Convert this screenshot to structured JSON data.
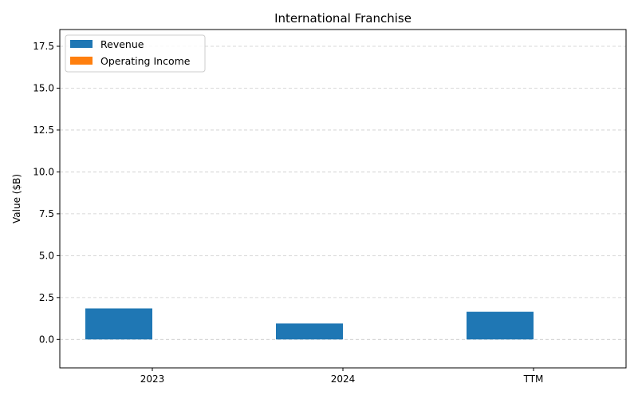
{
  "chart_data": {
    "type": "bar",
    "title": "International Franchise",
    "xlabel": "",
    "ylabel": "Value ($B)",
    "categories": [
      "2023",
      "2024",
      "TTM"
    ],
    "series": [
      {
        "name": "Revenue",
        "color": "#1f77b4",
        "values": [
          1.85,
          0.95,
          1.65
        ]
      },
      {
        "name": "Operating Income",
        "color": "#ff7f0e",
        "values": [
          0,
          0,
          0
        ]
      }
    ],
    "ylim": [
      -1.7,
      18.5
    ],
    "yticks": [
      "0.0",
      "2.5",
      "5.0",
      "7.5",
      "10.0",
      "12.5",
      "15.0",
      "17.5"
    ],
    "grid": "y-dashed",
    "legend": "top-left"
  }
}
